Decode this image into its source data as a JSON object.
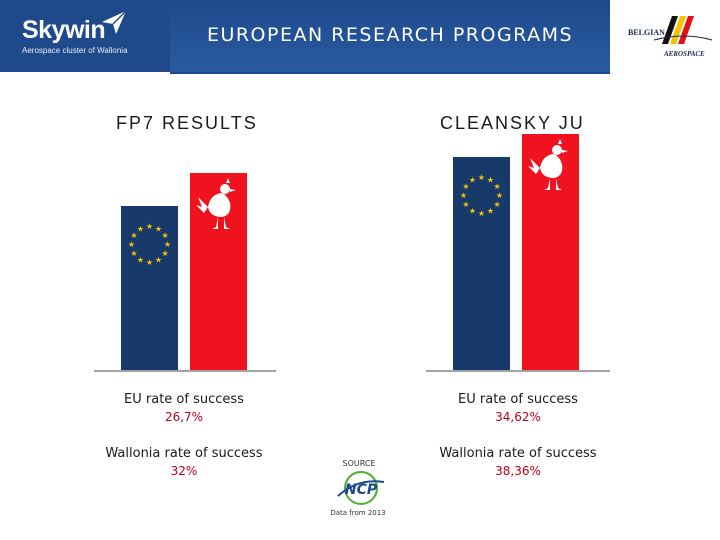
{
  "header": {
    "brand_name": "Skywin",
    "brand_tagline": "Aerospace cluster of Wallonia",
    "title": "EUROPEAN RESEARCH PROGRAMS",
    "partner_line1": "BELGIAN",
    "partner_line2": "AEROSPACE"
  },
  "colors": {
    "eu_blue": "#173a6a",
    "wallonia_red": "#f0121e",
    "value_red": "#c0001a",
    "header_blue": "#1e4a8c"
  },
  "chart_data": [
    {
      "type": "bar",
      "title": "FP7 RESULTS",
      "categories": [
        "EU",
        "Wallonia"
      ],
      "series": [
        {
          "values": [
            26.7,
            32
          ]
        }
      ],
      "labels": [
        {
          "caption": "EU rate of success",
          "value": "26,7%"
        },
        {
          "caption": "Wallonia rate of success",
          "value": "32%"
        }
      ],
      "ylim": [
        0,
        40
      ],
      "grid": false,
      "icons": [
        "eu-flag-stars-icon",
        "wallonia-rooster-icon"
      ]
    },
    {
      "type": "bar",
      "title": "CLEANSKY JU",
      "categories": [
        "EU",
        "Wallonia"
      ],
      "series": [
        {
          "values": [
            34.62,
            38.36
          ]
        }
      ],
      "labels": [
        {
          "caption": "EU rate of success",
          "value": "34,62%"
        },
        {
          "caption": "Wallonia rate of success",
          "value": "38,36%"
        }
      ],
      "ylim": [
        0,
        40
      ],
      "grid": false,
      "icons": [
        "eu-flag-stars-icon",
        "wallonia-rooster-icon"
      ]
    }
  ],
  "source": {
    "label": "SOURCE",
    "logo_text": "NCP",
    "note": "Data from 2013"
  }
}
